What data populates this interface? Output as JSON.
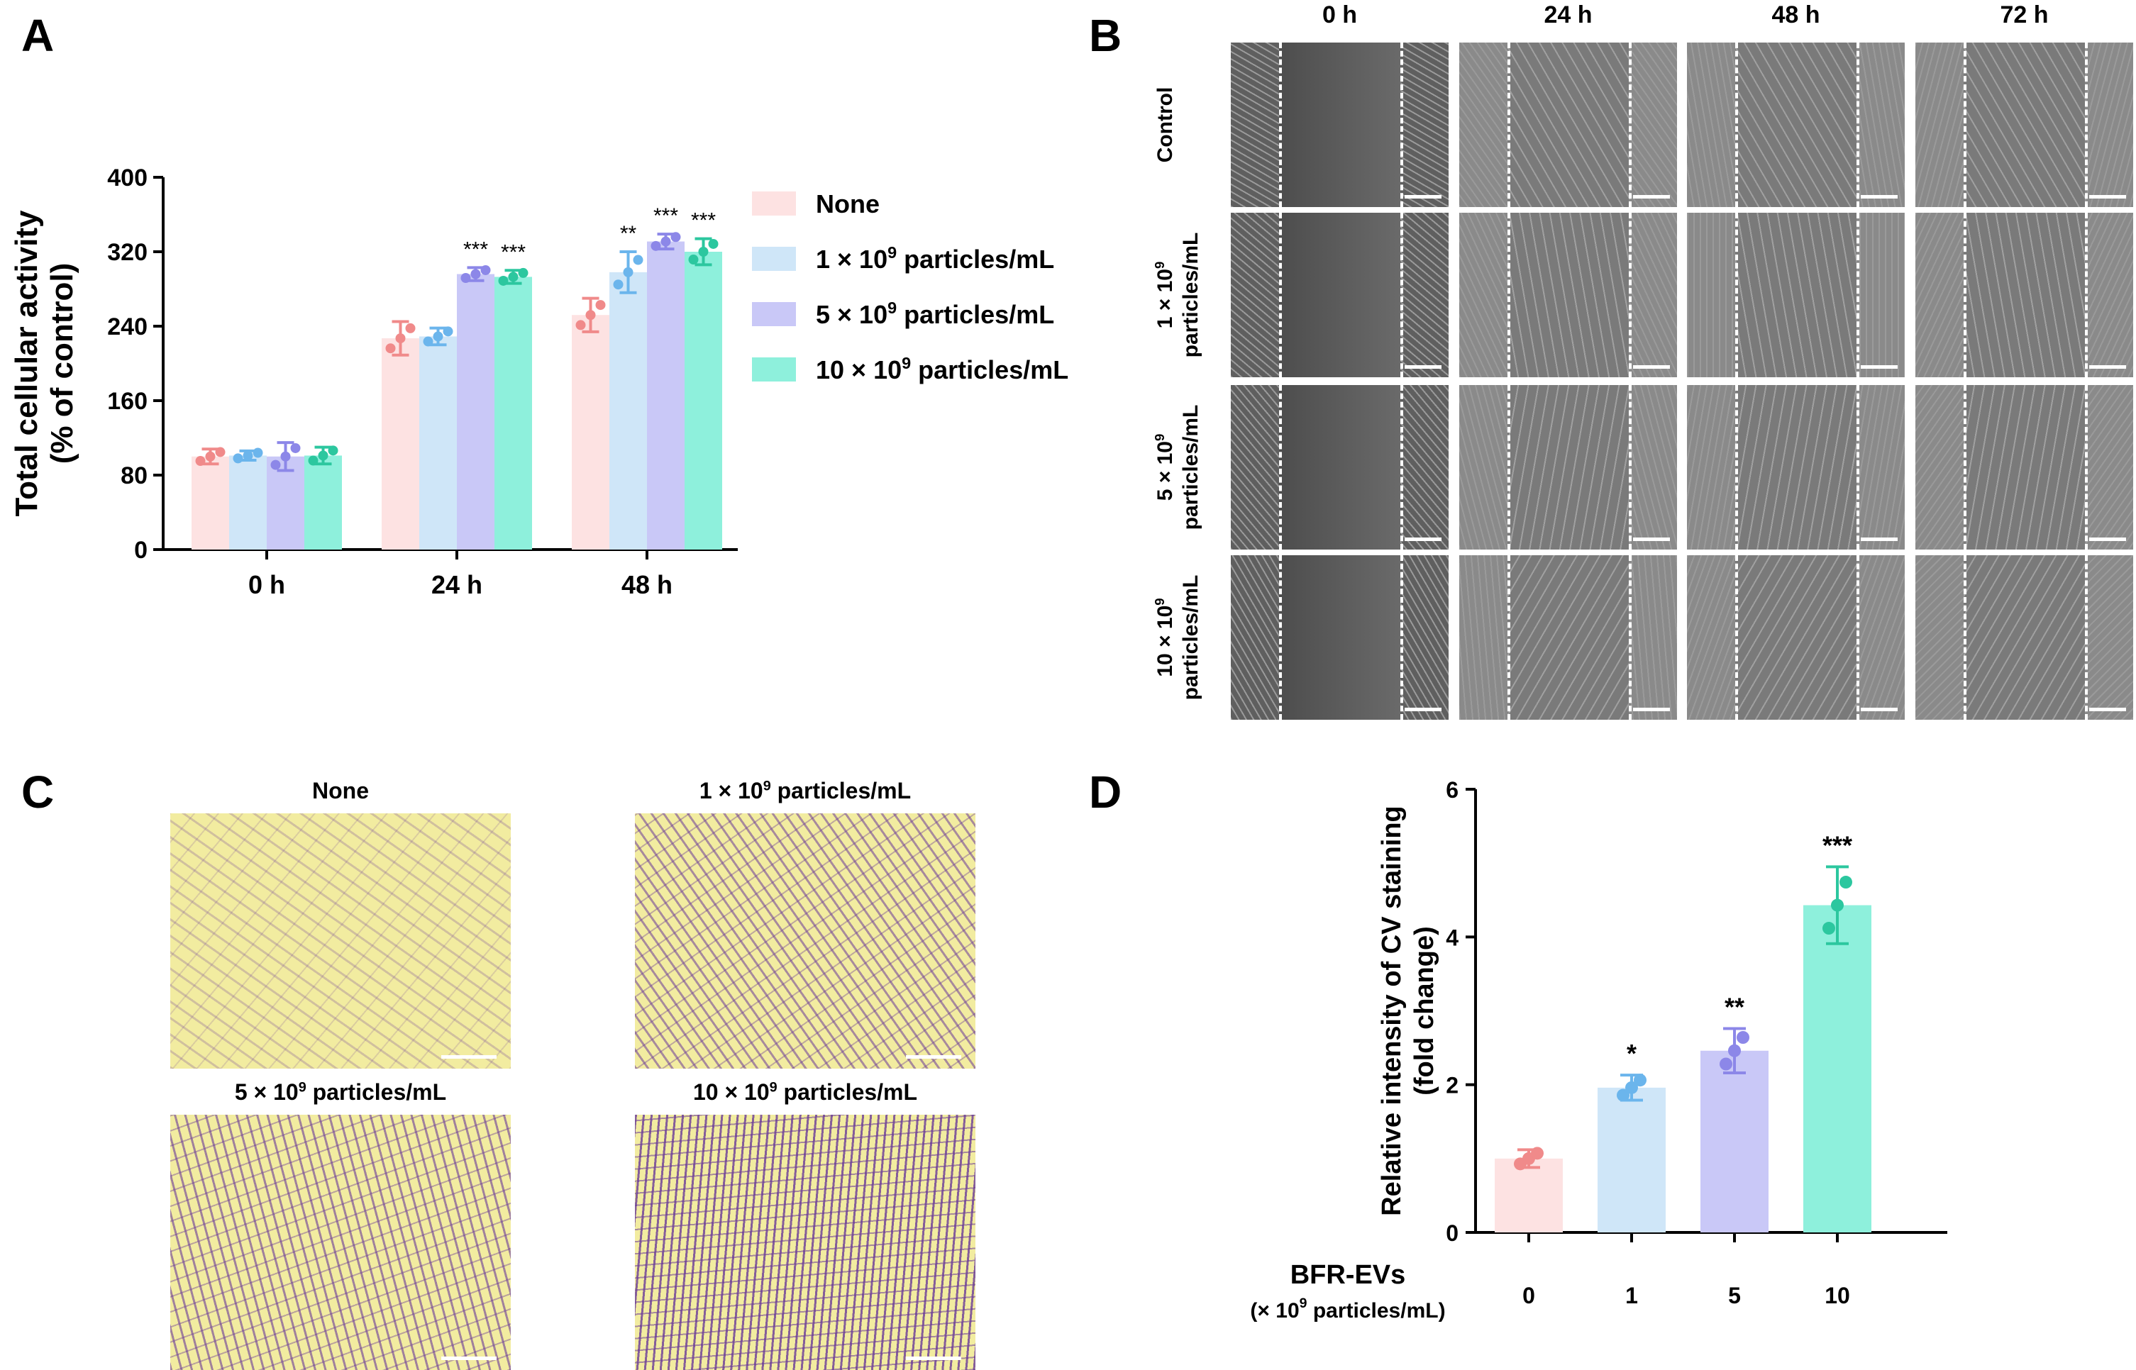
{
  "panels": {
    "a": {
      "letter": "A"
    },
    "b": {
      "letter": "B",
      "columns": [
        "0 h",
        "24 h",
        "48 h",
        "72 h"
      ],
      "rows": [
        {
          "line1": "Control",
          "line2": ""
        },
        {
          "line1": "1 × 10",
          "sup": "9",
          "line2": "particles/mL"
        },
        {
          "line1": "5 × 10",
          "sup": "9",
          "line2": "particles/mL"
        },
        {
          "line1": "10 × 10",
          "sup": "9",
          "line2": "particles/mL"
        }
      ]
    },
    "c": {
      "letter": "C",
      "titles": [
        {
          "pre": "None",
          "sup": "",
          "post": ""
        },
        {
          "pre": "1 × 10",
          "sup": "9",
          "post": " particles/mL"
        },
        {
          "pre": "5 × 10",
          "sup": "9",
          "post": " particles/mL"
        },
        {
          "pre": "10 × 10",
          "sup": "9",
          "post": " particles/mL"
        }
      ]
    },
    "d": {
      "letter": "D"
    }
  },
  "colors": {
    "none_fill": "#fde2e2",
    "none_edge": "#f08a8a",
    "g1_fill": "#cfe6f8",
    "g1_edge": "#6bb5ec",
    "g5_fill": "#c9c8f7",
    "g5_edge": "#8c87e8",
    "g10_fill": "#8ef0dc",
    "g10_edge": "#2cc79f",
    "micro_bg": "#6e6e6e",
    "stain_bg": "#f2eca0",
    "stain_cell": "#6a3a98"
  },
  "chart_data": [
    {
      "id": "A",
      "type": "bar",
      "title": "",
      "ylabel_line1": "Total cellular activity",
      "ylabel_line2": "(% of control)",
      "xlabel": "",
      "categories": [
        "0 h",
        "24 h",
        "48 h"
      ],
      "ylim": [
        0,
        400
      ],
      "yticks": [
        "0",
        "80",
        "160",
        "240",
        "320",
        "400"
      ],
      "series": [
        {
          "name": "None",
          "sup": "",
          "pre": "None",
          "post": "",
          "values": [
            100,
            227,
            252
          ],
          "err": [
            8,
            18,
            18
          ],
          "sig": [
            "",
            "",
            ""
          ]
        },
        {
          "name": "1 × 10^9 particles/mL",
          "pre": "1 × 10",
          "sup": "9",
          "post": " particles/mL",
          "values": [
            101,
            229,
            298
          ],
          "err": [
            5,
            9,
            22
          ],
          "sig": [
            "",
            "",
            "**"
          ]
        },
        {
          "name": "5 × 10^9 particles/mL",
          "pre": "5 × 10",
          "sup": "9",
          "post": " particles/mL",
          "values": [
            100,
            296,
            331
          ],
          "err": [
            15,
            7,
            8
          ],
          "sig": [
            "",
            "***",
            "***"
          ]
        },
        {
          "name": "10 × 10^9 particles/mL",
          "pre": "10 × 10",
          "sup": "9",
          "post": " particles/mL",
          "values": [
            101,
            293,
            320
          ],
          "err": [
            9,
            7,
            14
          ],
          "sig": [
            "",
            "***",
            "***"
          ]
        }
      ],
      "legend_position": "right"
    },
    {
      "id": "D",
      "type": "bar",
      "title": "",
      "ylabel_line1": "Relative intensity of CV staining",
      "ylabel_line2": "(fold change)",
      "xlabel_line1": "BFR-EVs",
      "xlabel_line2_pre": "(× 10",
      "xlabel_line2_sup": "9",
      "xlabel_line2_post": " particles/mL)",
      "categories": [
        "0",
        "1",
        "5",
        "10"
      ],
      "values": [
        1.0,
        1.96,
        2.46,
        4.43
      ],
      "err": [
        0.12,
        0.17,
        0.3,
        0.52
      ],
      "sig": [
        "",
        "*",
        "**",
        "***"
      ],
      "ylim": [
        0,
        6
      ],
      "yticks": [
        "0",
        "2",
        "4",
        "6"
      ]
    }
  ]
}
